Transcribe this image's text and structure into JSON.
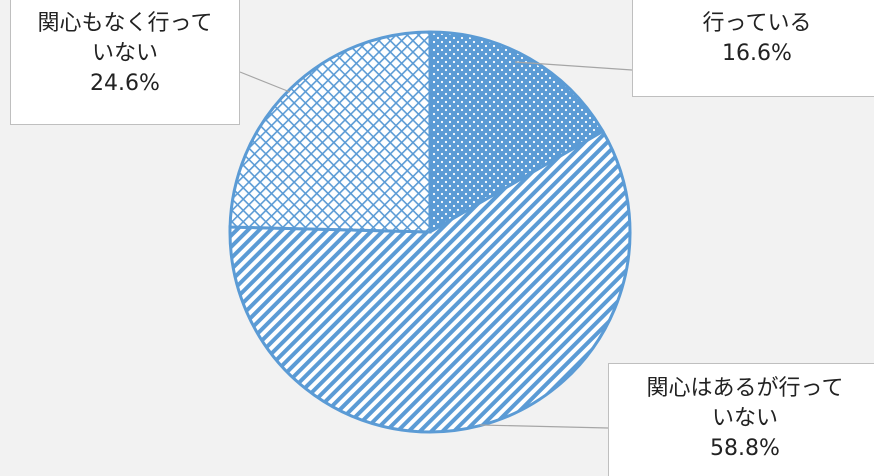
{
  "chart_data": {
    "type": "pie",
    "categories": [
      "行っている",
      "関心はあるが行っていない",
      "関心もなく行っていない"
    ],
    "values": [
      16.6,
      58.8,
      24.6
    ],
    "value_labels": [
      "16.6%",
      "58.8%",
      "24.6%"
    ],
    "color": "#5b9bd5"
  }
}
